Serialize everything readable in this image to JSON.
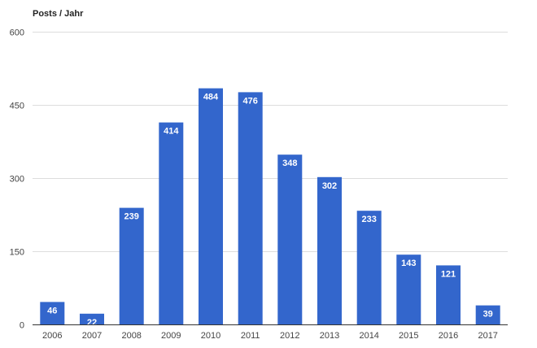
{
  "chart_data": {
    "type": "bar",
    "title": "Posts / Jahr",
    "categories": [
      "2006",
      "2007",
      "2008",
      "2009",
      "2010",
      "2011",
      "2012",
      "2013",
      "2014",
      "2015",
      "2016",
      "2017"
    ],
    "values": [
      46,
      22,
      239,
      414,
      484,
      476,
      348,
      302,
      233,
      143,
      121,
      39
    ],
    "ylim": [
      0,
      600
    ],
    "yticks": [
      0,
      150,
      300,
      450,
      600
    ],
    "grid": true,
    "legend": "none",
    "bar_color": "#3366cc",
    "data_labels": true
  }
}
